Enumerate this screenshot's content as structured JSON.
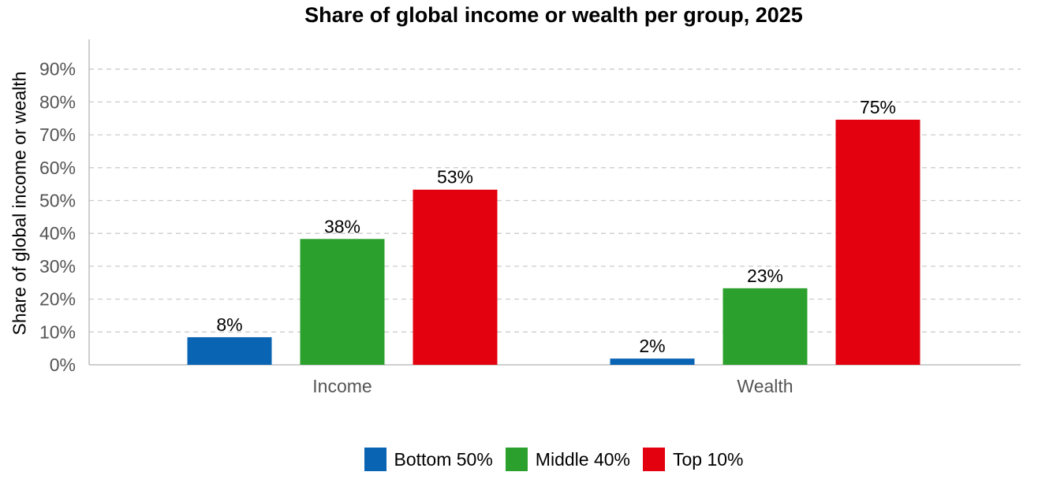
{
  "chart_data": {
    "type": "bar",
    "title": "Share of global income or wealth per group, 2025",
    "ylabel": "Share of global income or wealth",
    "xlabel": "",
    "categories": [
      "Income",
      "Wealth"
    ],
    "series": [
      {
        "name": "Bottom 50%",
        "color": "#0a64b4",
        "values": [
          8.4,
          1.9
        ],
        "labels": [
          "8%",
          "2%"
        ]
      },
      {
        "name": "Middle 40%",
        "color": "#2ca02c",
        "values": [
          38.3,
          23.3
        ],
        "labels": [
          "38%",
          "23%"
        ]
      },
      {
        "name": "Top 10%",
        "color": "#e3000f",
        "values": [
          53.3,
          74.6
        ],
        "labels": [
          "53%",
          "75%"
        ]
      }
    ],
    "ylim": [
      0,
      100
    ],
    "yticks": [
      0,
      10,
      20,
      30,
      40,
      50,
      60,
      70,
      80,
      90
    ],
    "ytick_labels": [
      "0%",
      "10%",
      "20%",
      "30%",
      "40%",
      "50%",
      "60%",
      "70%",
      "80%",
      "90%"
    ],
    "grid": true,
    "legend_position": "bottom"
  }
}
